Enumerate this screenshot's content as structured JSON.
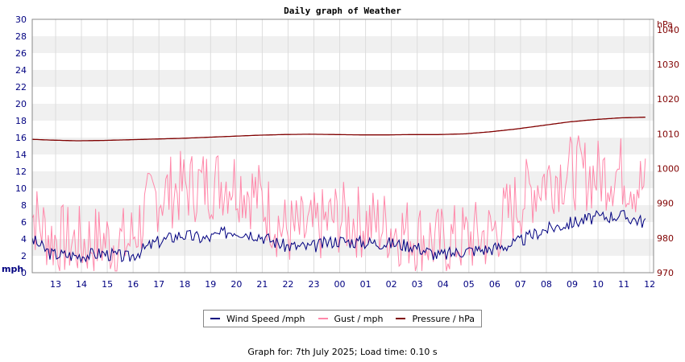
{
  "chart_data": {
    "type": "line",
    "title": "Daily graph of Weather",
    "left_axis": {
      "unit": "mph",
      "min": 0,
      "max": 30,
      "step": 2,
      "ticks": [
        "0",
        "2",
        "4",
        "6",
        "8",
        "10",
        "12",
        "14",
        "16",
        "18",
        "20",
        "22",
        "24",
        "26",
        "28",
        "30"
      ]
    },
    "right_axis": {
      "unit": "hPa",
      "min": 970,
      "max": 1043,
      "ticks": [
        "970",
        "980",
        "990",
        "1000",
        "1010",
        "1020",
        "1030",
        "1040"
      ]
    },
    "x_ticks": [
      "13",
      "14",
      "15",
      "16",
      "17",
      "18",
      "19",
      "20",
      "21",
      "22",
      "23",
      "00",
      "01",
      "02",
      "03",
      "04",
      "05",
      "06",
      "07",
      "08",
      "09",
      "10",
      "11",
      "12"
    ],
    "grid": true,
    "series": [
      {
        "name": "Wind Speed /mph",
        "axis": "left",
        "color": "#000080",
        "hours": [
          0,
          1,
          2,
          3,
          4,
          5,
          6,
          7,
          8,
          9,
          10,
          11,
          12,
          13,
          14,
          15,
          16,
          17,
          18,
          19,
          20,
          21,
          22,
          23,
          24
        ],
        "values": [
          4.5,
          2.2,
          2.0,
          2.3,
          1.8,
          3.5,
          4.5,
          4.0,
          5.0,
          4.5,
          3.2,
          3.0,
          3.8,
          3.6,
          3.5,
          3.2,
          2.0,
          2.6,
          2.8,
          3.5,
          5.0,
          5.8,
          6.5,
          6.8,
          6.0
        ]
      },
      {
        "name": "Gust / mph",
        "axis": "left",
        "color": "#ff88aa",
        "hours": [
          0,
          1,
          2,
          3,
          4,
          5,
          6,
          7,
          8,
          9,
          10,
          11,
          12,
          13,
          14,
          15,
          16,
          17,
          18,
          19,
          20,
          21,
          22,
          23,
          24
        ],
        "values": [
          8.0,
          4.0,
          3.5,
          3.8,
          3.5,
          9.0,
          10.0,
          10.5,
          11.0,
          9.0,
          5.0,
          4.8,
          6.5,
          6.0,
          5.5,
          4.5,
          3.5,
          4.0,
          4.5,
          8.0,
          11.0,
          12.0,
          11.5,
          12.0,
          10.0
        ]
      },
      {
        "name": "Pressure / hPa",
        "axis": "right",
        "color": "#800000",
        "hours": [
          0,
          1,
          2,
          3,
          4,
          5,
          6,
          7,
          8,
          9,
          10,
          11,
          12,
          13,
          14,
          15,
          16,
          17,
          18,
          19,
          20,
          21,
          22,
          23,
          24
        ],
        "values": [
          1008.5,
          1008.2,
          1008.0,
          1008.1,
          1008.3,
          1008.5,
          1008.7,
          1009.0,
          1009.3,
          1009.6,
          1009.8,
          1009.9,
          1009.8,
          1009.7,
          1009.7,
          1009.8,
          1009.8,
          1010.0,
          1010.6,
          1011.4,
          1012.4,
          1013.4,
          1014.1,
          1014.6,
          1014.8
        ]
      }
    ]
  },
  "legend": {
    "wind": "Wind Speed /mph",
    "gust": "Gust / mph",
    "pressure": "Pressure / hPa"
  },
  "footer": "Graph for: 7th July 2025; Load time: 0.10 s"
}
